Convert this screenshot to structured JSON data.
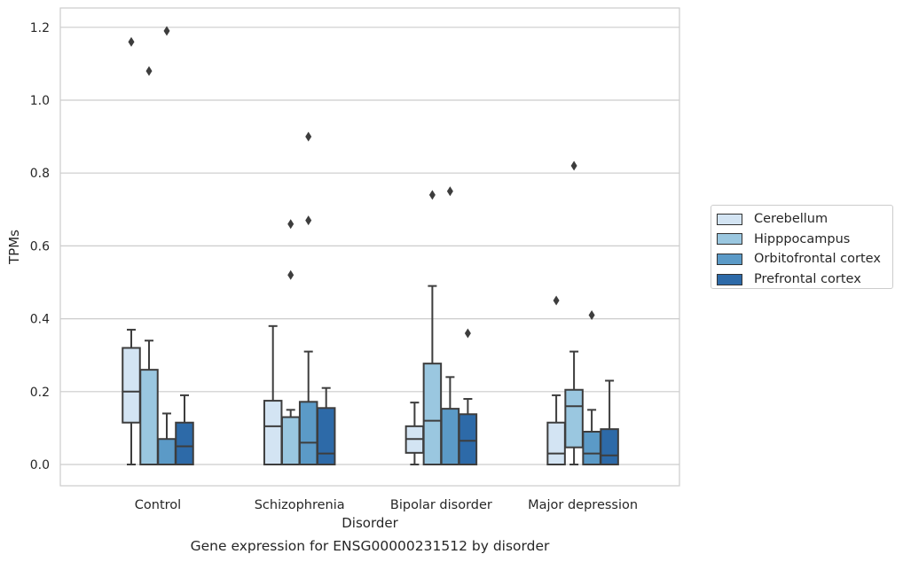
{
  "chart_data": {
    "type": "box",
    "title": "",
    "caption": "Gene expression for ENSG00000231512 by disorder",
    "xlabel": "Disorder",
    "ylabel": "TPMs",
    "ylim": [
      -0.058,
      1.25
    ],
    "yticks": [
      "0.0",
      "0.2",
      "0.4",
      "0.6",
      "0.8",
      "1.0",
      "1.2"
    ],
    "categories": [
      "Control",
      "Schizophrenia",
      "Bipolar disorder",
      "Major depression"
    ],
    "grid": "horizontal",
    "legend_position": "right",
    "series": [
      {
        "name": "Cerebellum",
        "color": "#d3e4f3",
        "boxes": [
          {
            "whislo": 0.0,
            "q1": 0.115,
            "med": 0.2,
            "q3": 0.32,
            "whishi": 0.37,
            "fliers": [
              1.16
            ]
          },
          {
            "whislo": 0.0,
            "q1": 0.0,
            "med": 0.105,
            "q3": 0.175,
            "whishi": 0.38,
            "fliers": []
          },
          {
            "whislo": 0.0,
            "q1": 0.032,
            "med": 0.07,
            "q3": 0.105,
            "whishi": 0.17,
            "fliers": []
          },
          {
            "whislo": 0.0,
            "q1": 0.0,
            "med": 0.03,
            "q3": 0.115,
            "whishi": 0.19,
            "fliers": [
              0.45
            ]
          }
        ]
      },
      {
        "name": "Hipppocampus",
        "color": "#9ac7e0",
        "boxes": [
          {
            "whislo": 0.0,
            "q1": 0.0,
            "med": 0.0,
            "q3": 0.26,
            "whishi": 0.34,
            "fliers": [
              1.08
            ]
          },
          {
            "whislo": 0.0,
            "q1": 0.0,
            "med": 0.0,
            "q3": 0.13,
            "whishi": 0.15,
            "fliers": [
              0.52,
              0.66
            ]
          },
          {
            "whislo": 0.0,
            "q1": 0.0,
            "med": 0.12,
            "q3": 0.277,
            "whishi": 0.49,
            "fliers": [
              0.74
            ]
          },
          {
            "whislo": 0.0,
            "q1": 0.047,
            "med": 0.16,
            "q3": 0.205,
            "whishi": 0.31,
            "fliers": [
              0.82
            ]
          }
        ]
      },
      {
        "name": "Orbitofrontal cortex",
        "color": "#5b9ac7",
        "boxes": [
          {
            "whislo": 0.0,
            "q1": 0.0,
            "med": 0.0,
            "q3": 0.07,
            "whishi": 0.14,
            "fliers": [
              1.19
            ]
          },
          {
            "whislo": 0.0,
            "q1": 0.0,
            "med": 0.06,
            "q3": 0.172,
            "whishi": 0.31,
            "fliers": [
              0.67,
              0.9
            ]
          },
          {
            "whislo": 0.0,
            "q1": 0.0,
            "med": 0.0,
            "q3": 0.153,
            "whishi": 0.24,
            "fliers": [
              0.75
            ]
          },
          {
            "whislo": 0.0,
            "q1": 0.0,
            "med": 0.03,
            "q3": 0.09,
            "whishi": 0.15,
            "fliers": [
              0.41
            ]
          }
        ]
      },
      {
        "name": "Prefrontal cortex",
        "color": "#2d6aa8",
        "boxes": [
          {
            "whislo": 0.0,
            "q1": 0.0,
            "med": 0.05,
            "q3": 0.115,
            "whishi": 0.19,
            "fliers": []
          },
          {
            "whislo": 0.0,
            "q1": 0.0,
            "med": 0.03,
            "q3": 0.155,
            "whishi": 0.21,
            "fliers": []
          },
          {
            "whislo": 0.0,
            "q1": 0.0,
            "med": 0.065,
            "q3": 0.138,
            "whishi": 0.18,
            "fliers": [
              0.36
            ]
          },
          {
            "whislo": 0.0,
            "q1": 0.0,
            "med": 0.025,
            "q3": 0.097,
            "whishi": 0.23,
            "fliers": []
          }
        ]
      }
    ]
  }
}
